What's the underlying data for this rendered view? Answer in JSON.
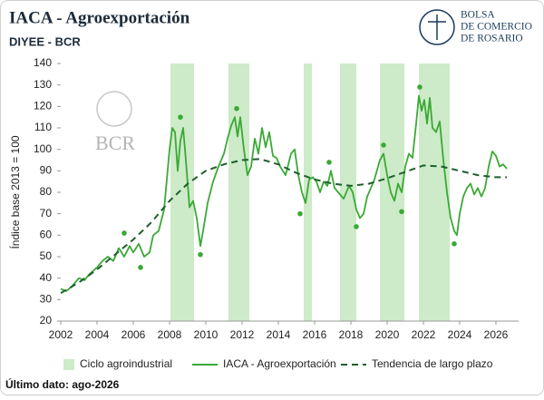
{
  "chart_data": {
    "type": "line",
    "title": "IACA - Agroexportación",
    "subtitle": "DIYEE - BCR",
    "logo_text": [
      "BOLSA",
      "DE COMERCIO",
      "DE ROSARIO"
    ],
    "watermark": "BCR",
    "y_label": "Índice base 2013 = 100",
    "footnote": "Último dato: ago-2026",
    "xlim": [
      2002,
      2027.25
    ],
    "xticks": [
      2002,
      2004,
      2006,
      2008,
      2010,
      2012,
      2014,
      2016,
      2018,
      2020,
      2022,
      2024,
      2026
    ],
    "ylim": [
      20,
      140
    ],
    "yticks": [
      20,
      30,
      40,
      50,
      60,
      70,
      80,
      90,
      100,
      110,
      120,
      130,
      140
    ],
    "shaded_regions": {
      "name": "Ciclo agroindustrial",
      "color": "#cdebc8",
      "ranges": [
        [
          2008.05,
          2009.35
        ],
        [
          2011.25,
          2012.4
        ],
        [
          2015.4,
          2015.85
        ],
        [
          2017.4,
          2018.3
        ],
        [
          2019.6,
          2020.95
        ],
        [
          2021.75,
          2023.45
        ]
      ]
    },
    "series": [
      {
        "name": "IACA - Agroexportación",
        "color": "#3aa935",
        "style": "solid",
        "x": [
          2002.0,
          2002.3,
          2002.6,
          2003.0,
          2003.3,
          2003.6,
          2004.0,
          2004.3,
          2004.6,
          2004.9,
          2005.2,
          2005.5,
          2005.8,
          2006.0,
          2006.3,
          2006.6,
          2006.9,
          2007.1,
          2007.4,
          2007.7,
          2008.0,
          2008.15,
          2008.3,
          2008.45,
          2008.6,
          2008.75,
          2008.9,
          2009.1,
          2009.3,
          2009.5,
          2009.7,
          2009.85,
          2010.1,
          2010.4,
          2010.7,
          2011.0,
          2011.2,
          2011.4,
          2011.6,
          2011.75,
          2011.9,
          2012.1,
          2012.3,
          2012.5,
          2012.7,
          2012.9,
          2013.1,
          2013.3,
          2013.5,
          2013.7,
          2013.9,
          2014.1,
          2014.4,
          2014.7,
          2014.9,
          2015.1,
          2015.3,
          2015.5,
          2015.7,
          2015.9,
          2016.1,
          2016.3,
          2016.5,
          2016.7,
          2016.9,
          2017.1,
          2017.3,
          2017.6,
          2017.9,
          2018.1,
          2018.3,
          2018.5,
          2018.7,
          2018.9,
          2019.1,
          2019.3,
          2019.6,
          2019.8,
          2020.0,
          2020.2,
          2020.4,
          2020.6,
          2020.8,
          2021.0,
          2021.2,
          2021.4,
          2021.6,
          2021.75,
          2021.9,
          2022.05,
          2022.2,
          2022.35,
          2022.5,
          2022.7,
          2022.9,
          2023.1,
          2023.3,
          2023.5,
          2023.7,
          2023.85,
          2024.0,
          2024.2,
          2024.4,
          2024.6,
          2024.8,
          2025.0,
          2025.2,
          2025.4,
          2025.6,
          2025.8,
          2026.0,
          2026.2,
          2026.4,
          2026.6
        ],
        "values": [
          35,
          34,
          36,
          40,
          39,
          42,
          45,
          48,
          50,
          48,
          54,
          50,
          55,
          52,
          56,
          50,
          52,
          60,
          62,
          72,
          100,
          110,
          108,
          90,
          104,
          110,
          95,
          73,
          76,
          68,
          55,
          62,
          75,
          85,
          92,
          98,
          105,
          111,
          115,
          106,
          115,
          100,
          88,
          92,
          105,
          98,
          110,
          101,
          108,
          97,
          96,
          92,
          88,
          98,
          100,
          88,
          80,
          75,
          86,
          87,
          85,
          80,
          85,
          83,
          90,
          82,
          80,
          77,
          83,
          80,
          72,
          68,
          70,
          78,
          82,
          86,
          95,
          98,
          88,
          80,
          76,
          84,
          80,
          92,
          98,
          96,
          112,
          125,
          118,
          123,
          112,
          124,
          110,
          108,
          113,
          95,
          80,
          68,
          62,
          60,
          70,
          78,
          82,
          84,
          79,
          82,
          78,
          82,
          92,
          99,
          97,
          92,
          93,
          91
        ]
      },
      {
        "name": "Tendencia de largo plazo",
        "color": "#1f5e2e",
        "style": "dashed",
        "x": [
          2002,
          2003,
          2004,
          2005,
          2006,
          2007,
          2008,
          2009,
          2010,
          2011,
          2012,
          2013,
          2014,
          2015,
          2016,
          2017,
          2018,
          2019,
          2020,
          2021,
          2022,
          2023,
          2024,
          2025,
          2026,
          2026.6
        ],
        "values": [
          33,
          38,
          44,
          51,
          58,
          66,
          76,
          84,
          90,
          93,
          95,
          95.5,
          93,
          89,
          86,
          84,
          83,
          84,
          86.5,
          89.5,
          92.5,
          92,
          90,
          88,
          87,
          87
        ]
      }
    ],
    "highlight_points": {
      "color": "#3aa935",
      "x": [
        2005.5,
        2006.4,
        2008.6,
        2009.7,
        2011.7,
        2015.2,
        2016.8,
        2018.3,
        2019.8,
        2020.8,
        2021.8,
        2023.7
      ],
      "values": [
        61,
        45,
        115,
        51,
        119,
        70,
        94,
        64,
        102,
        71,
        129,
        56
      ]
    }
  }
}
